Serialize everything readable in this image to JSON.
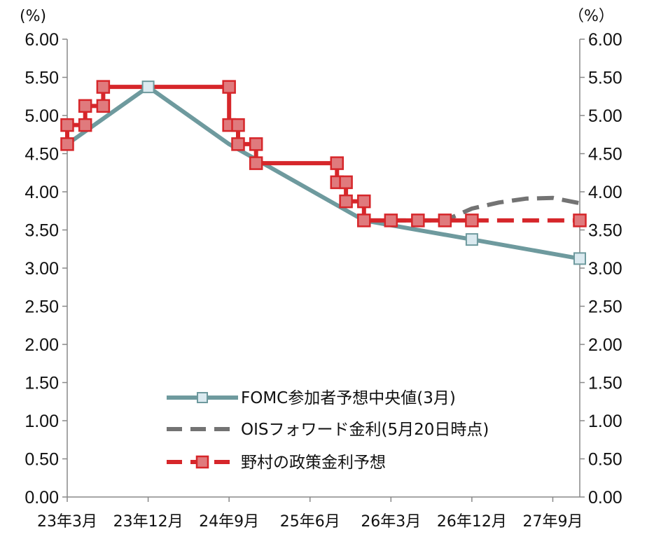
{
  "chart_data": {
    "type": "line",
    "left_axis_unit": "(%)",
    "right_axis_unit": "（%）",
    "ylim": [
      0,
      6
    ],
    "y_ticks": [
      "0.00",
      "0.50",
      "1.00",
      "1.50",
      "2.00",
      "2.50",
      "3.00",
      "3.50",
      "4.00",
      "4.50",
      "5.00",
      "5.50",
      "6.00"
    ],
    "x_ticks": [
      {
        "label": "23年3月",
        "x": 0
      },
      {
        "label": "23年12月",
        "x": 9
      },
      {
        "label": "24年9月",
        "x": 18
      },
      {
        "label": "25年6月",
        "x": 27
      },
      {
        "label": "26年3月",
        "x": 36
      },
      {
        "label": "26年12月",
        "x": 45
      },
      {
        "label": "27年9月",
        "x": 54
      }
    ],
    "x_range": [
      0,
      57
    ],
    "grid": false,
    "legend_position": "lower-right",
    "series": [
      {
        "name": "FOMC参加者予想中央値(3月)",
        "color": "#6e9a9e",
        "marker_fill": "#dbeaf0",
        "line_style": "solid",
        "points": [
          [
            0,
            4.625
          ],
          [
            9,
            5.375
          ],
          [
            18,
            4.625
          ],
          [
            33,
            3.625
          ],
          [
            45,
            3.375
          ],
          [
            57,
            3.125
          ]
        ],
        "markers": [
          [
            9,
            5.375
          ],
          [
            45,
            3.375
          ],
          [
            57,
            3.125
          ]
        ]
      },
      {
        "name": "OISフォワード金利(5月20日時点)",
        "color": "#737373",
        "line_style": "dashed",
        "points": [
          [
            33,
            3.625
          ],
          [
            42,
            3.625
          ],
          [
            45,
            3.78
          ],
          [
            48,
            3.86
          ],
          [
            51,
            3.91
          ],
          [
            54,
            3.92
          ],
          [
            57,
            3.85
          ]
        ],
        "markers": []
      },
      {
        "name": "野村の政策金利予想",
        "color": "#d6262a",
        "marker_fill": "#e07a7d",
        "line_style": "mixed",
        "points": [
          [
            0,
            4.625
          ],
          [
            0,
            4.875
          ],
          [
            2,
            4.875
          ],
          [
            2,
            5.125
          ],
          [
            4,
            5.125
          ],
          [
            4,
            5.375
          ],
          [
            18,
            5.375
          ],
          [
            18,
            4.875
          ],
          [
            19,
            4.875
          ],
          [
            19,
            4.625
          ],
          [
            21,
            4.625
          ],
          [
            21,
            4.375
          ],
          [
            30,
            4.375
          ],
          [
            30,
            4.125
          ],
          [
            31,
            4.125
          ],
          [
            31,
            3.875
          ],
          [
            33,
            3.875
          ],
          [
            33,
            3.625
          ],
          [
            45,
            3.625
          ],
          [
            57,
            3.625
          ]
        ],
        "solid_until_x": 45,
        "markers": [
          [
            0,
            4.625
          ],
          [
            0,
            4.875
          ],
          [
            2,
            4.875
          ],
          [
            2,
            5.125
          ],
          [
            4,
            5.125
          ],
          [
            4,
            5.375
          ],
          [
            18,
            5.375
          ],
          [
            18,
            4.875
          ],
          [
            19,
            4.875
          ],
          [
            19,
            4.625
          ],
          [
            21,
            4.625
          ],
          [
            21,
            4.375
          ],
          [
            30,
            4.375
          ],
          [
            30,
            4.125
          ],
          [
            31,
            4.125
          ],
          [
            31,
            3.875
          ],
          [
            33,
            3.875
          ],
          [
            33,
            3.625
          ],
          [
            36,
            3.625
          ],
          [
            39,
            3.625
          ],
          [
            42,
            3.625
          ],
          [
            45,
            3.625
          ],
          [
            57,
            3.625
          ]
        ]
      }
    ]
  }
}
